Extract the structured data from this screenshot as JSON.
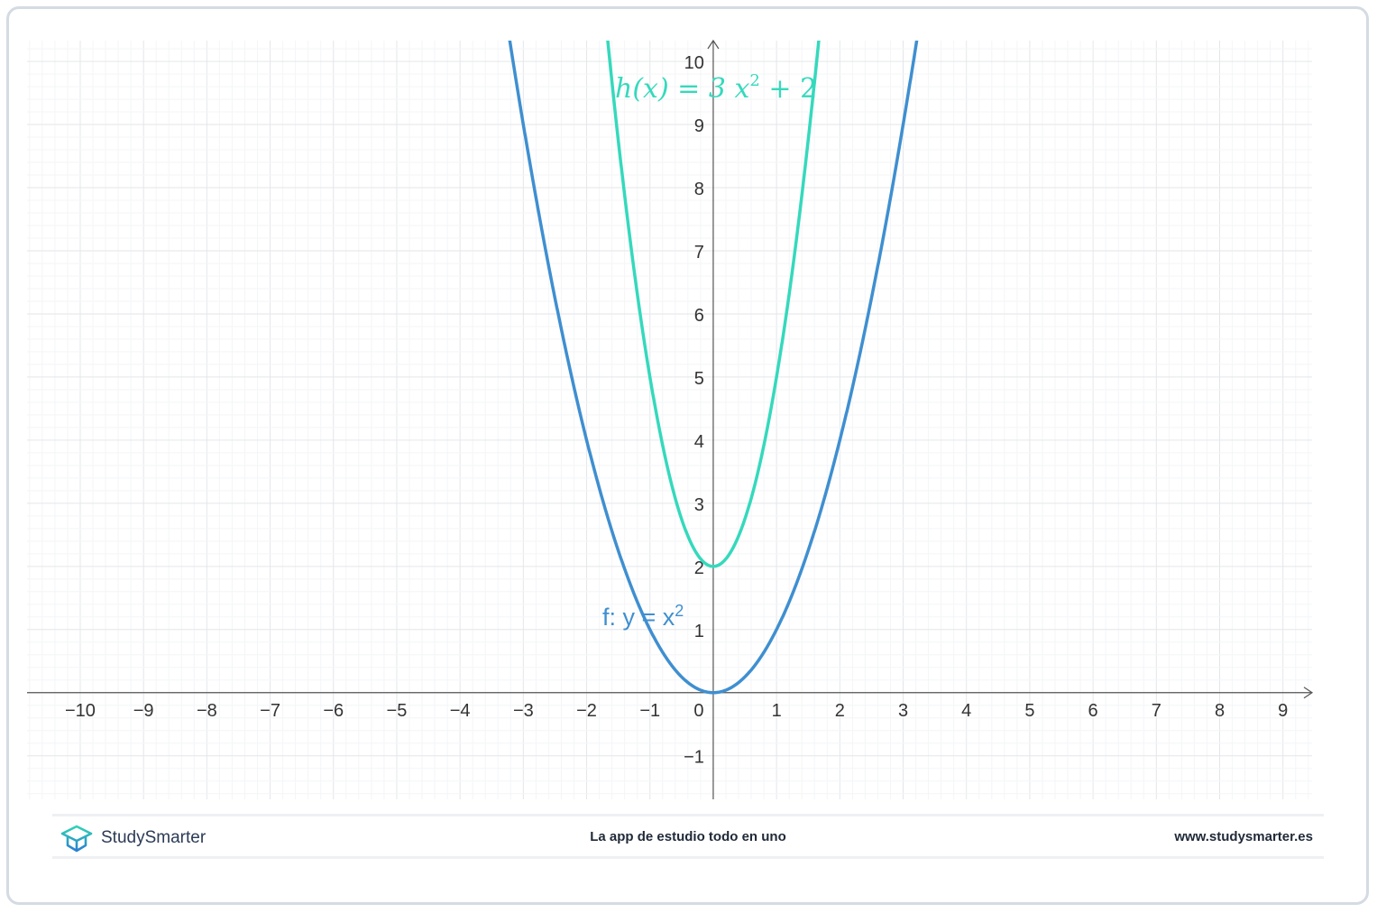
{
  "chart_data": {
    "type": "line",
    "title": "",
    "xlim": [
      -10.84,
      9.46
    ],
    "ylim": [
      -1.69,
      10.33
    ],
    "x_ticks": [
      -10,
      -9,
      -8,
      -7,
      -6,
      -5,
      -4,
      -3,
      -2,
      -1,
      0,
      1,
      2,
      3,
      4,
      5,
      6,
      7,
      8,
      9
    ],
    "x_tick_labels": [
      "−10",
      "−9",
      "−8",
      "−7",
      "−6",
      "−5",
      "−4",
      "−3",
      "−2",
      "−1",
      "0",
      "1",
      "2",
      "3",
      "4",
      "5",
      "6",
      "7",
      "8",
      "9"
    ],
    "y_ticks": [
      -1,
      1,
      2,
      3,
      4,
      5,
      6,
      7,
      8,
      9,
      10
    ],
    "y_tick_labels": [
      "−1",
      "1",
      "2",
      "3",
      "4",
      "5",
      "6",
      "7",
      "8",
      "9",
      "10"
    ],
    "grid": true,
    "minor_grid_step": 0.2,
    "series": [
      {
        "name": "f: y = x²",
        "expression": "x^2",
        "color": "#3f8fd0",
        "label_parts": [
          "f: y = x",
          "2"
        ]
      },
      {
        "name": "h(x) = 3x² + 2",
        "expression": "3x^2+2",
        "color": "#35d9bc",
        "label_parts": [
          "h(x) = 3 x",
          "2",
          " + 2"
        ]
      }
    ]
  },
  "footer": {
    "brand": "StudySmarter",
    "tagline": "La app de estudio todo en uno",
    "url": "www.studysmarter.es"
  }
}
